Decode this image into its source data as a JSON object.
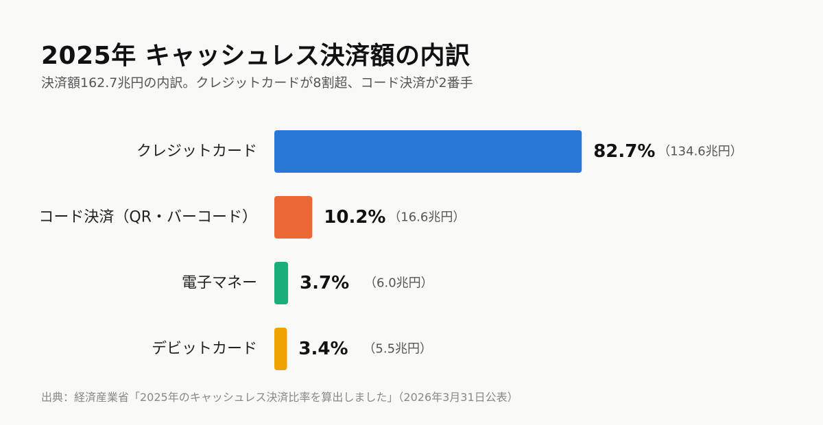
{
  "title": "2025年 キャッシュレス決済額の内訳",
  "subtitle": "決済額162.7兆円の内訳。クレジットカードが8割超、コード決済が2番手",
  "source": "出典：経済産業省「2025年のキャッシュレス決済比率を算出しました」（2026年3月31日公表）",
  "chart_data": {
    "type": "bar",
    "orientation": "horizontal",
    "categories": [
      "クレジットカード",
      "コード決済（QR・バーコード）",
      "電子マネー",
      "デビットカード"
    ],
    "values": [
      82.7,
      10.2,
      3.7,
      3.4
    ],
    "value_labels": [
      "82.7%",
      "10.2%",
      "3.7%",
      "3.4%"
    ],
    "amount_labels": [
      "（134.6兆円）",
      "（16.6兆円）",
      "（6.0兆円）",
      "（5.5兆円）"
    ],
    "colors": [
      "#2a78d6",
      "#eb6834",
      "#1aae7a",
      "#eea301"
    ],
    "grid": false,
    "legend": "none"
  }
}
